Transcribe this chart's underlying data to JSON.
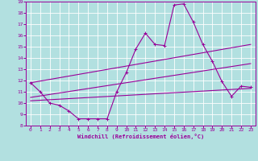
{
  "xlabel": "Windchill (Refroidissement éolien,°C)",
  "xlim": [
    -0.5,
    23.5
  ],
  "ylim": [
    8,
    19
  ],
  "yticks": [
    8,
    9,
    10,
    11,
    12,
    13,
    14,
    15,
    16,
    17,
    18,
    19
  ],
  "xticks": [
    0,
    1,
    2,
    3,
    4,
    5,
    6,
    7,
    8,
    9,
    10,
    11,
    12,
    13,
    14,
    15,
    16,
    17,
    18,
    19,
    20,
    21,
    22,
    23
  ],
  "bg_color": "#b2e0e0",
  "line_color": "#990099",
  "grid_color": "#ffffff",
  "series1_x": [
    0,
    1,
    2,
    3,
    4,
    5,
    6,
    7,
    8,
    9,
    10,
    11,
    12,
    13,
    14,
    15,
    16,
    17,
    18,
    19,
    20,
    21,
    22,
    23
  ],
  "series1_y": [
    11.8,
    11.0,
    10.0,
    9.8,
    9.3,
    8.6,
    8.6,
    8.6,
    8.6,
    11.0,
    12.7,
    14.8,
    16.2,
    15.2,
    15.1,
    18.7,
    18.8,
    17.2,
    15.2,
    13.7,
    11.9,
    10.6,
    11.5,
    11.4
  ],
  "series2_x": [
    0,
    23
  ],
  "series2_y": [
    10.5,
    13.5
  ],
  "series3_x": [
    0,
    23
  ],
  "series3_y": [
    10.2,
    11.3
  ],
  "series4_x": [
    0,
    23
  ],
  "series4_y": [
    11.8,
    15.2
  ]
}
